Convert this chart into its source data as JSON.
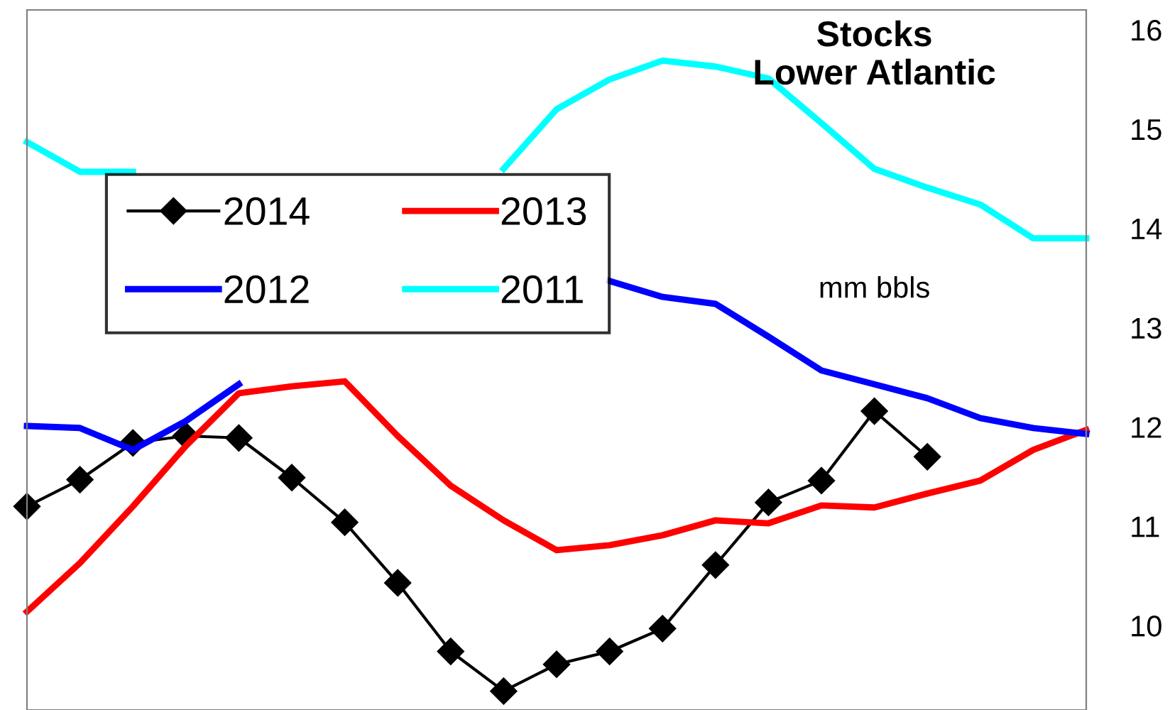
{
  "chart_data": {
    "type": "line",
    "title": "Stocks\nLower Atlantic",
    "annotations": [
      "mm bbls"
    ],
    "categories": [
      null,
      null,
      null,
      null,
      null,
      null,
      null,
      null,
      null,
      null,
      null,
      null,
      null,
      null,
      null,
      null,
      null,
      null,
      null,
      null,
      null
    ],
    "series": [
      {
        "name": "2014",
        "color": "#000000",
        "marker": "diamond",
        "values": [
          11.2,
          11.47,
          11.84,
          11.91,
          11.89,
          11.49,
          11.04,
          10.43,
          9.74,
          9.34,
          9.61,
          9.74,
          9.97,
          10.61,
          11.24,
          11.46,
          12.16,
          11.7,
          null,
          null,
          null
        ]
      },
      {
        "name": "2013",
        "color": "#ff0000",
        "values": [
          10.14,
          10.63,
          11.2,
          11.81,
          12.34,
          12.41,
          12.46,
          11.91,
          11.41,
          11.06,
          10.76,
          10.81,
          10.91,
          11.06,
          11.03,
          11.21,
          11.19,
          11.33,
          11.46,
          11.77,
          11.97
        ]
      },
      {
        "name": "2012",
        "color": "#0000ff",
        "values": [
          12.01,
          11.99,
          11.77,
          12.06,
          12.43,
          null,
          null,
          null,
          null,
          null,
          null,
          13.47,
          13.31,
          13.24,
          12.91,
          12.57,
          12.43,
          12.29,
          12.09,
          11.99,
          11.93
        ]
      },
      {
        "name": "2011",
        "color": "#00ffff",
        "values": [
          14.87,
          14.57,
          14.57,
          null,
          null,
          null,
          null,
          null,
          null,
          14.6,
          15.2,
          15.5,
          15.69,
          15.63,
          15.51,
          15.06,
          14.6,
          14.41,
          14.24,
          13.9,
          13.9
        ]
      }
    ],
    "ylim": [
      9.15,
      16.2
    ],
    "yticks": [
      10,
      11,
      12,
      13,
      14,
      15,
      16
    ],
    "tick_labels": "y",
    "grid": false,
    "legend": "top left"
  }
}
